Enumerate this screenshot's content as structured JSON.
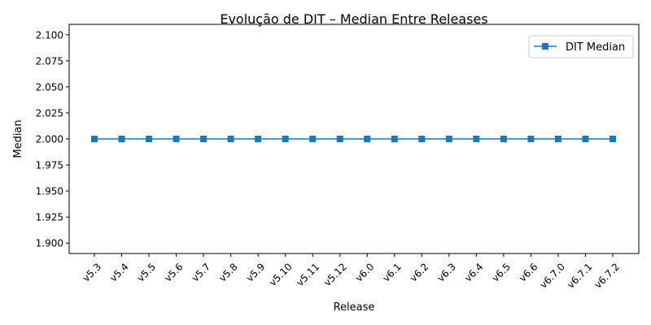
{
  "chart_data": {
    "type": "line",
    "title": "Evolução de DIT – Median Entre Releases",
    "xlabel": "Release",
    "ylabel": "Median",
    "categories": [
      "v5.3",
      "v5.4",
      "v5.5",
      "v5.6",
      "v5.7",
      "v5.8",
      "v5.9",
      "v5.10",
      "v5.11",
      "v5.12",
      "v6.0",
      "v6.1",
      "v6.2",
      "v6.3",
      "v6.4",
      "v6.5",
      "v6.6",
      "v6.7.0",
      "v6.7.1",
      "v6.7.2"
    ],
    "series": [
      {
        "name": "DIT Median",
        "color": "#1f77b4",
        "marker": "square",
        "values": [
          2,
          2,
          2,
          2,
          2,
          2,
          2,
          2,
          2,
          2,
          2,
          2,
          2,
          2,
          2,
          2,
          2,
          2,
          2,
          2
        ]
      }
    ],
    "ylim": [
      1.89,
      2.11
    ],
    "yticks": [
      "1.900",
      "1.925",
      "1.950",
      "1.975",
      "2.000",
      "2.025",
      "2.050",
      "2.075",
      "2.100"
    ],
    "legend": "top-right",
    "grid": false
  }
}
